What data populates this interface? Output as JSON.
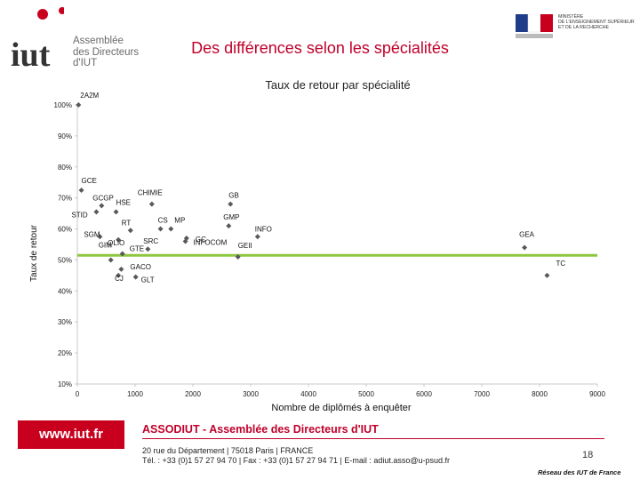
{
  "header": {
    "logo": {
      "mark": "iut",
      "line1": "Assemblée",
      "line2": "des Directeurs",
      "line3": "d'IUT"
    },
    "ministry": {
      "line1": "MINISTÈRE",
      "line2": "DE L'ENSEIGNEMENT SUPÉRIEUR",
      "line3": "ET DE LA RECHERCHE"
    },
    "slide_title": "Des différences selon les spécialités"
  },
  "chart_data": {
    "type": "scatter",
    "title": "Taux de retour par spécialité",
    "xlabel": "Nombre de diplômés à enquêter",
    "ylabel": "Taux de retour",
    "xlim": [
      0,
      9000
    ],
    "ylim": [
      10,
      100
    ],
    "x_ticks": [
      0,
      1000,
      2000,
      3000,
      4000,
      5000,
      6000,
      7000,
      8000,
      9000
    ],
    "y_ticks": [
      10,
      20,
      30,
      40,
      50,
      60,
      70,
      80,
      90,
      100
    ],
    "y_tick_labels": [
      "10%",
      "20%",
      "30%",
      "40%",
      "50%",
      "60%",
      "70%",
      "80%",
      "90%",
      "100%"
    ],
    "reference_line": {
      "y": 51.5,
      "color": "#8dc63f"
    },
    "points": [
      {
        "label": "2A2M",
        "x": 20,
        "y": 100
      },
      {
        "label": "GCE",
        "x": 70,
        "y": 72.5
      },
      {
        "label": "GCGP",
        "x": 420,
        "y": 67.5
      },
      {
        "label": "HSE",
        "x": 670,
        "y": 65.5
      },
      {
        "label": "STID",
        "x": 330,
        "y": 65.5
      },
      {
        "label": "CHIMIE",
        "x": 1290,
        "y": 68
      },
      {
        "label": "GB",
        "x": 2650,
        "y": 68
      },
      {
        "label": "GMP",
        "x": 2620,
        "y": 61
      },
      {
        "label": "CS",
        "x": 1440,
        "y": 60
      },
      {
        "label": "MP",
        "x": 1620,
        "y": 60
      },
      {
        "label": "RT",
        "x": 920,
        "y": 59.5
      },
      {
        "label": "SGM",
        "x": 390,
        "y": 57.5
      },
      {
        "label": "QLIO",
        "x": 710,
        "y": 56.5
      },
      {
        "label": "GC",
        "x": 1890,
        "y": 57
      },
      {
        "label": "INFO",
        "x": 3120,
        "y": 57.5
      },
      {
        "label": "INFOCOM",
        "x": 1870,
        "y": 56
      },
      {
        "label": "SRC",
        "x": 1220,
        "y": 53.5
      },
      {
        "label": "GTE",
        "x": 780,
        "y": 52
      },
      {
        "label": "GIM",
        "x": 580,
        "y": 50
      },
      {
        "label": "GEII",
        "x": 2780,
        "y": 51
      },
      {
        "label": "GEA",
        "x": 7740,
        "y": 54
      },
      {
        "label": "GACO",
        "x": 760,
        "y": 47
      },
      {
        "label": "CJ",
        "x": 710,
        "y": 45
      },
      {
        "label": "GLT",
        "x": 1010,
        "y": 44.5
      },
      {
        "label": "TC",
        "x": 8130,
        "y": 45
      }
    ],
    "colors": {
      "marker": "#595959",
      "reference": "#8dc63f",
      "grid_axis": "#c8c8c8"
    }
  },
  "footer": {
    "url": "www.iut.fr",
    "organization": "ASSODIUT - Assemblée des Directeurs d'IUT",
    "address": "20 rue du Département | 75018 Paris | FRANCE",
    "contact": "Tél. : +33 (0)1 57 27 94 70 | Fax : +33 (0)1 57 27 94 71 | E-mail : adiut.asso@u-psud.fr",
    "page": "18",
    "network": "Réseau des IUT de France"
  }
}
